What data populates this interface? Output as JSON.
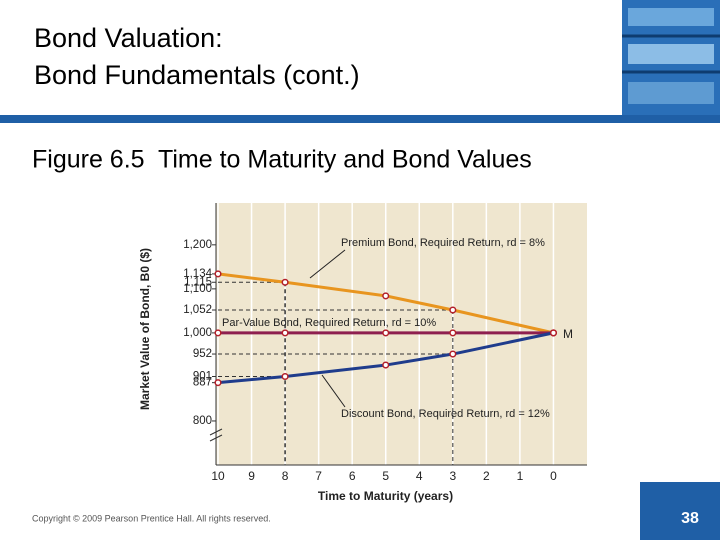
{
  "slide": {
    "title_lines": [
      "Bond Valuation:",
      "Bond Fundamentals (cont.)"
    ],
    "subtitle": "Figure 6.5  Time to Maturity and Bond Values",
    "copyright": "Copyright © 2009 Pearson Prentice Hall. All rights reserved.",
    "page_number": "38"
  },
  "chart_data": {
    "type": "line",
    "x_label": "Time to Maturity (years)",
    "y_label": "Market Value of Bond, B0 ($)",
    "xlim": [
      10,
      -1
    ],
    "xticks": [
      10,
      9,
      8,
      7,
      6,
      5,
      4,
      3,
      2,
      1,
      0
    ],
    "ylim": [
      700,
      1295
    ],
    "yticks": [
      {
        "value": 800,
        "label": "800"
      },
      {
        "value": 887,
        "label": "887"
      },
      {
        "value": 901,
        "label": "901"
      },
      {
        "value": 952,
        "label": "952"
      },
      {
        "value": 1000,
        "label": "1,000"
      },
      {
        "value": 1052,
        "label": "1,052"
      },
      {
        "value": 1100,
        "label": "1,100"
      },
      {
        "value": 1115,
        "label": "1,115"
      },
      {
        "value": 1134,
        "label": "1,134"
      },
      {
        "value": 1200,
        "label": "1,200"
      }
    ],
    "x": [
      10,
      8,
      5,
      3,
      0
    ],
    "series": [
      {
        "name": "Premium Bond, Required Return, rd = 8%",
        "color": "#e8951f",
        "values": [
          1134,
          1115,
          1084,
          1052,
          1000
        ]
      },
      {
        "name": "Par-Value Bond, Required Return, rd = 10%",
        "color": "#8e1f4f",
        "values": [
          1000,
          1000,
          1000,
          1000,
          1000
        ]
      },
      {
        "name": "Discount Bond, Required Return, rd = 12%",
        "color": "#1f3c8c",
        "values": [
          887,
          901,
          927,
          952,
          1000
        ]
      }
    ],
    "annotation": "M"
  }
}
